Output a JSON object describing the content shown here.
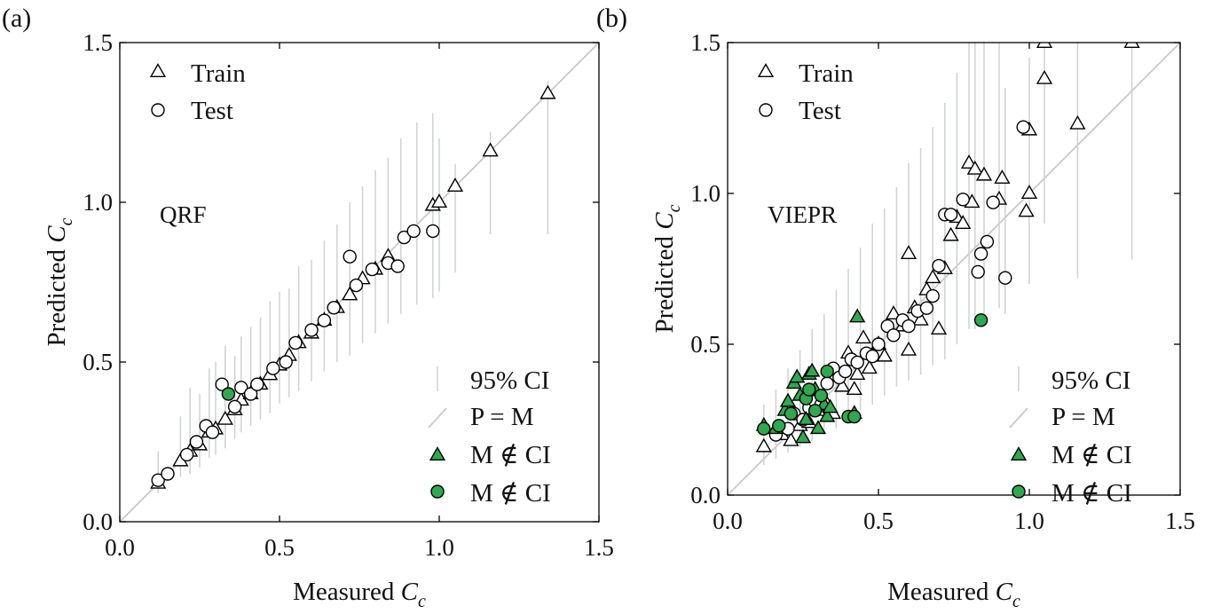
{
  "panels": [
    {
      "letter": "(a)",
      "model_label": "QRF",
      "xlabel": "Measured ",
      "ylabel": "Predicted ",
      "var_main": "C",
      "var_sub": "c",
      "legend": {
        "train": "Train",
        "test": "Test",
        "ci": "95% CI",
        "pm": "P = M",
        "out_train": "M ∉ CI",
        "out_test": "M ∉ CI"
      },
      "xticks": [
        "0.0",
        "0.5",
        "1.0",
        "1.5"
      ],
      "yticks": [
        "0.0",
        "0.5",
        "1.0",
        "1.5"
      ]
    },
    {
      "letter": "(b)",
      "model_label": "VIEPR",
      "xlabel": "Measured ",
      "ylabel": "Predicted ",
      "var_main": "C",
      "var_sub": "c",
      "legend": {
        "train": "Train",
        "test": "Test",
        "ci": "95% CI",
        "pm": "P = M",
        "out_train": "M ∉ CI",
        "out_test": "M ∉ CI"
      },
      "xticks": [
        "0.0",
        "0.5",
        "1.0",
        "1.5"
      ],
      "yticks": [
        "0.0",
        "0.5",
        "1.0",
        "1.5"
      ]
    }
  ],
  "colors": {
    "outlier_fill": "#2fa84f",
    "ci_line": "#cfd2d2",
    "reference_line": "#c8c8c8"
  },
  "chart_data": [
    {
      "type": "scatter",
      "title": "QRF",
      "xlabel": "Measured Cc",
      "ylabel": "Predicted Cc",
      "xlim": [
        0,
        1.5
      ],
      "ylim": [
        0,
        1.5
      ],
      "grid": false,
      "legend_position": "top-left / bottom-right",
      "reference_line": "P = M",
      "series": [
        {
          "name": "Train",
          "marker": "triangle",
          "points": [
            [
              0.12,
              0.12
            ],
            [
              0.19,
              0.19
            ],
            [
              0.22,
              0.22
            ],
            [
              0.25,
              0.24
            ],
            [
              0.28,
              0.28
            ],
            [
              0.3,
              0.29
            ],
            [
              0.33,
              0.32
            ],
            [
              0.36,
              0.35
            ],
            [
              0.38,
              0.38
            ],
            [
              0.41,
              0.4
            ],
            [
              0.44,
              0.43
            ],
            [
              0.47,
              0.46
            ],
            [
              0.5,
              0.49
            ],
            [
              0.53,
              0.52
            ],
            [
              0.56,
              0.56
            ],
            [
              0.6,
              0.59
            ],
            [
              0.64,
              0.63
            ],
            [
              0.68,
              0.67
            ],
            [
              0.72,
              0.71
            ],
            [
              0.76,
              0.76
            ],
            [
              0.8,
              0.79
            ],
            [
              0.84,
              0.83
            ],
            [
              0.98,
              0.99
            ],
            [
              1.0,
              1.0
            ],
            [
              1.05,
              1.05
            ],
            [
              1.16,
              1.16
            ],
            [
              1.34,
              1.34
            ]
          ]
        },
        {
          "name": "Test",
          "marker": "circle",
          "points": [
            [
              0.12,
              0.13
            ],
            [
              0.15,
              0.15
            ],
            [
              0.21,
              0.21
            ],
            [
              0.24,
              0.25
            ],
            [
              0.27,
              0.3
            ],
            [
              0.29,
              0.28
            ],
            [
              0.32,
              0.43
            ],
            [
              0.36,
              0.36
            ],
            [
              0.38,
              0.42
            ],
            [
              0.41,
              0.4
            ],
            [
              0.43,
              0.43
            ],
            [
              0.48,
              0.48
            ],
            [
              0.52,
              0.5
            ],
            [
              0.55,
              0.56
            ],
            [
              0.6,
              0.6
            ],
            [
              0.64,
              0.63
            ],
            [
              0.67,
              0.67
            ],
            [
              0.72,
              0.83
            ],
            [
              0.74,
              0.74
            ],
            [
              0.79,
              0.79
            ],
            [
              0.84,
              0.81
            ],
            [
              0.87,
              0.8
            ],
            [
              0.89,
              0.89
            ],
            [
              0.92,
              0.91
            ],
            [
              0.98,
              0.91
            ]
          ]
        },
        {
          "name": "M ∉ CI",
          "marker": "triangle-filled",
          "points": []
        },
        {
          "name": "M ∉ CI",
          "marker": "circle-filled",
          "points": [
            [
              0.34,
              0.4
            ]
          ]
        }
      ],
      "ci_intervals": [
        [
          0.12,
          0.09,
          0.22
        ],
        [
          0.19,
          0.14,
          0.33
        ],
        [
          0.22,
          0.15,
          0.42
        ],
        [
          0.25,
          0.17,
          0.4
        ],
        [
          0.28,
          0.2,
          0.48
        ],
        [
          0.3,
          0.21,
          0.5
        ],
        [
          0.33,
          0.23,
          0.55
        ],
        [
          0.36,
          0.26,
          0.52
        ],
        [
          0.38,
          0.28,
          0.58
        ],
        [
          0.41,
          0.3,
          0.61
        ],
        [
          0.44,
          0.32,
          0.64
        ],
        [
          0.47,
          0.34,
          0.69
        ],
        [
          0.5,
          0.37,
          0.72
        ],
        [
          0.53,
          0.39,
          0.73
        ],
        [
          0.56,
          0.41,
          0.8
        ],
        [
          0.6,
          0.44,
          0.82
        ],
        [
          0.64,
          0.47,
          0.88
        ],
        [
          0.68,
          0.5,
          0.93
        ],
        [
          0.72,
          0.52,
          1.0
        ],
        [
          0.76,
          0.56,
          1.05
        ],
        [
          0.8,
          0.59,
          1.1
        ],
        [
          0.84,
          0.62,
          1.14
        ],
        [
          0.88,
          0.65,
          1.2
        ],
        [
          0.93,
          0.68,
          1.25
        ],
        [
          0.98,
          0.7,
          1.28
        ],
        [
          1.0,
          0.72,
          1.2
        ],
        [
          1.05,
          0.78,
          1.12
        ],
        [
          1.16,
          0.9,
          1.22
        ],
        [
          1.34,
          0.9,
          1.38
        ]
      ]
    },
    {
      "type": "scatter",
      "title": "VIEPR",
      "xlabel": "Measured Cc",
      "ylabel": "Predicted Cc",
      "xlim": [
        0,
        1.5
      ],
      "ylim": [
        0,
        1.5
      ],
      "grid": false,
      "legend_position": "top-left / bottom-right",
      "reference_line": "P = M",
      "series": [
        {
          "name": "Train",
          "marker": "triangle",
          "points": [
            [
              0.12,
              0.16
            ],
            [
              0.18,
              0.2
            ],
            [
              0.21,
              0.18
            ],
            [
              0.24,
              0.23
            ],
            [
              0.27,
              0.24
            ],
            [
              0.3,
              0.28
            ],
            [
              0.33,
              0.3
            ],
            [
              0.35,
              0.27
            ],
            [
              0.38,
              0.36
            ],
            [
              0.4,
              0.47
            ],
            [
              0.42,
              0.35
            ],
            [
              0.43,
              0.4
            ],
            [
              0.45,
              0.52
            ],
            [
              0.47,
              0.42
            ],
            [
              0.5,
              0.5
            ],
            [
              0.52,
              0.46
            ],
            [
              0.55,
              0.6
            ],
            [
              0.58,
              0.56
            ],
            [
              0.6,
              0.48
            ],
            [
              0.6,
              0.8
            ],
            [
              0.62,
              0.62
            ],
            [
              0.64,
              0.58
            ],
            [
              0.66,
              0.68
            ],
            [
              0.68,
              0.72
            ],
            [
              0.7,
              0.55
            ],
            [
              0.72,
              0.75
            ],
            [
              0.74,
              0.86
            ],
            [
              0.76,
              0.92
            ],
            [
              0.78,
              0.9
            ],
            [
              0.8,
              1.1
            ],
            [
              0.81,
              0.97
            ],
            [
              0.82,
              1.08
            ],
            [
              0.85,
              1.06
            ],
            [
              0.9,
              0.98
            ],
            [
              0.91,
              1.05
            ],
            [
              0.99,
              0.94
            ],
            [
              1.0,
              1.0
            ],
            [
              1.0,
              1.21
            ],
            [
              1.05,
              1.38
            ],
            [
              1.05,
              1.5
            ],
            [
              1.16,
              1.23
            ],
            [
              1.34,
              1.5
            ]
          ]
        },
        {
          "name": "Test",
          "marker": "circle",
          "points": [
            [
              0.16,
              0.2
            ],
            [
              0.2,
              0.22
            ],
            [
              0.22,
              0.27
            ],
            [
              0.25,
              0.25
            ],
            [
              0.27,
              0.29
            ],
            [
              0.29,
              0.31
            ],
            [
              0.31,
              0.3
            ],
            [
              0.33,
              0.37
            ],
            [
              0.35,
              0.42
            ],
            [
              0.37,
              0.39
            ],
            [
              0.39,
              0.41
            ],
            [
              0.41,
              0.45
            ],
            [
              0.43,
              0.44
            ],
            [
              0.46,
              0.47
            ],
            [
              0.48,
              0.46
            ],
            [
              0.5,
              0.5
            ],
            [
              0.53,
              0.56
            ],
            [
              0.55,
              0.53
            ],
            [
              0.58,
              0.58
            ],
            [
              0.6,
              0.56
            ],
            [
              0.63,
              0.61
            ],
            [
              0.66,
              0.62
            ],
            [
              0.68,
              0.66
            ],
            [
              0.7,
              0.76
            ],
            [
              0.72,
              0.93
            ],
            [
              0.74,
              0.93
            ],
            [
              0.78,
              0.98
            ],
            [
              0.83,
              0.74
            ],
            [
              0.84,
              0.8
            ],
            [
              0.86,
              0.84
            ],
            [
              0.88,
              0.97
            ],
            [
              0.92,
              0.72
            ],
            [
              0.98,
              1.22
            ]
          ]
        },
        {
          "name": "M ∉ CI",
          "marker": "triangle-filled",
          "points": [
            [
              0.12,
              0.23
            ],
            [
              0.16,
              0.22
            ],
            [
              0.19,
              0.28
            ],
            [
              0.2,
              0.31
            ],
            [
              0.22,
              0.37
            ],
            [
              0.23,
              0.39
            ],
            [
              0.24,
              0.33
            ],
            [
              0.25,
              0.19
            ],
            [
              0.26,
              0.25
            ],
            [
              0.27,
              0.4
            ],
            [
              0.28,
              0.41
            ],
            [
              0.29,
              0.35
            ],
            [
              0.3,
              0.22
            ],
            [
              0.32,
              0.3
            ],
            [
              0.33,
              0.26
            ],
            [
              0.34,
              0.29
            ],
            [
              0.42,
              0.27
            ],
            [
              0.43,
              0.59
            ]
          ]
        },
        {
          "name": "M ∉ CI",
          "marker": "circle-filled",
          "points": [
            [
              0.12,
              0.22
            ],
            [
              0.17,
              0.23
            ],
            [
              0.21,
              0.27
            ],
            [
              0.26,
              0.32
            ],
            [
              0.27,
              0.35
            ],
            [
              0.29,
              0.28
            ],
            [
              0.31,
              0.33
            ],
            [
              0.33,
              0.41
            ],
            [
              0.4,
              0.26
            ],
            [
              0.42,
              0.26
            ],
            [
              0.84,
              0.58
            ]
          ]
        }
      ],
      "ci_intervals": [
        [
          0.12,
          0.1,
          0.3
        ],
        [
          0.16,
          0.12,
          0.35
        ],
        [
          0.2,
          0.14,
          0.42
        ],
        [
          0.24,
          0.16,
          0.48
        ],
        [
          0.28,
          0.18,
          0.55
        ],
        [
          0.32,
          0.2,
          0.6
        ],
        [
          0.36,
          0.22,
          0.68
        ],
        [
          0.4,
          0.25,
          0.75
        ],
        [
          0.44,
          0.28,
          0.82
        ],
        [
          0.48,
          0.3,
          0.9
        ],
        [
          0.52,
          0.33,
          0.95
        ],
        [
          0.56,
          0.36,
          1.02
        ],
        [
          0.6,
          0.38,
          1.1
        ],
        [
          0.64,
          0.4,
          1.15
        ],
        [
          0.68,
          0.43,
          1.22
        ],
        [
          0.72,
          0.45,
          1.3
        ],
        [
          0.76,
          0.5,
          1.4
        ],
        [
          0.8,
          0.55,
          1.5
        ],
        [
          0.82,
          0.55,
          1.5
        ],
        [
          0.85,
          0.6,
          1.5
        ],
        [
          0.9,
          0.62,
          1.5
        ],
        [
          0.92,
          0.6,
          1.35
        ],
        [
          1.0,
          0.7,
          1.45
        ],
        [
          1.05,
          0.9,
          1.5
        ],
        [
          1.16,
          0.72,
          1.5
        ],
        [
          1.34,
          0.78,
          1.5
        ]
      ]
    }
  ]
}
